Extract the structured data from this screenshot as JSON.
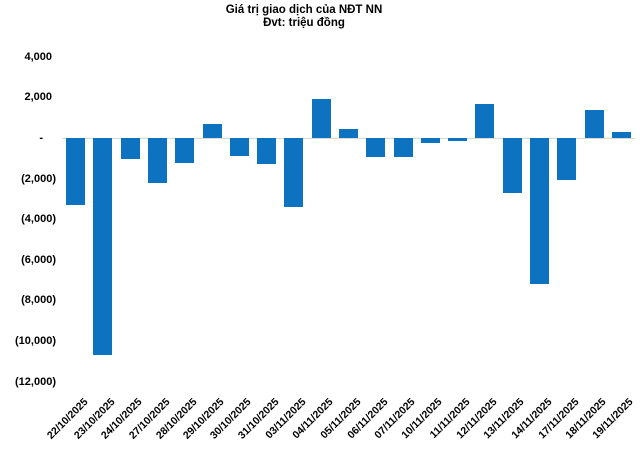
{
  "chart_data": {
    "type": "bar",
    "title": "Giá trị giao dịch của NĐT NN",
    "subtitle": "Đvt: triệu đồng",
    "categories": [
      "22/10/2025",
      "23/10/2025",
      "24/10/2025",
      "27/10/2025",
      "28/10/2025",
      "29/10/2025",
      "30/10/2025",
      "31/10/2025",
      "03/11/2025",
      "04/11/2025",
      "05/11/2025",
      "06/11/2025",
      "07/11/2025",
      "10/11/2025",
      "11/11/2025",
      "12/11/2025",
      "13/11/2025",
      "14/11/2025",
      "17/11/2025",
      "18/11/2025",
      "19/11/2025"
    ],
    "values": [
      -3300,
      -10700,
      -1050,
      -2200,
      -1230,
      680,
      -900,
      -1300,
      -3400,
      1900,
      420,
      -920,
      -920,
      -230,
      -150,
      1660,
      -2700,
      -7200,
      -2050,
      1360,
      280
    ],
    "xlabel": "",
    "ylabel": "",
    "ylim": [
      -12000,
      4000
    ],
    "y_ticks": [
      {
        "label": "4,000",
        "value": 4000
      },
      {
        "label": "2,000",
        "value": 2000
      },
      {
        "label": "-",
        "value": 0
      },
      {
        "label": "(2,000)",
        "value": -2000
      },
      {
        "label": "(4,000)",
        "value": -4000
      },
      {
        "label": "(6,000)",
        "value": -6000
      },
      {
        "label": "(8,000)",
        "value": -8000
      },
      {
        "label": "(10,000)",
        "value": -10000
      },
      {
        "label": "(12,000)",
        "value": -12000
      }
    ],
    "grid": "zero-line-only",
    "legend": "none",
    "bar_color": "#0d72c0",
    "zero_line_color": "#d9d9d9",
    "text_color": "#000000",
    "background_color": "#ffffff"
  }
}
